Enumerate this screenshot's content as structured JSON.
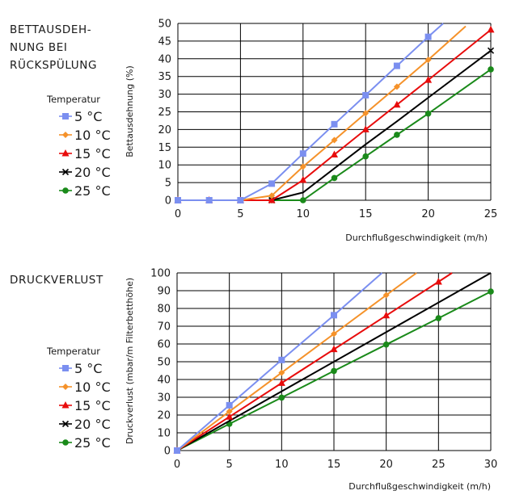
{
  "charts": [
    {
      "title": "BETTAUSDEH-\nNUNG BEI\nRÜCKSPÜLUNG",
      "legend_title": "Temperatur",
      "xlabel": "Durchflußgeschwindigkeit (m/h)",
      "ylabel": "Bettausdehnung (%)"
    },
    {
      "title": "DRUCKVERLUST",
      "legend_title": "Temperatur",
      "xlabel": "Durchflußgeschwindigkeit (m/h)",
      "ylabel": "Druckverlust  (mbar/m Filterbetthöhe)"
    }
  ],
  "colors": {
    "5 °C": "#7b8ff0",
    "10 °C": "#f5922a",
    "15 °C": "#e80c0c",
    "20 °C": "#000000",
    "25 °C": "#1a8a1a"
  },
  "chart_data": [
    {
      "type": "line",
      "title": "BETTAUSDEH-NUNG BEI RÜCKSPÜLUNG",
      "xlabel": "Durchflußgeschwindigkeit (m/h)",
      "ylabel": "Bettausdehnung (%)",
      "xlim": [
        0,
        25
      ],
      "ylim": [
        0,
        50
      ],
      "xticks": [
        0,
        5,
        10,
        15,
        20,
        25
      ],
      "yticks": [
        0,
        5,
        10,
        15,
        20,
        25,
        30,
        35,
        40,
        45,
        50
      ],
      "grid": true,
      "legend_title": "Temperatur",
      "legend_position": "left",
      "series": [
        {
          "name": "5 °C",
          "marker": "square",
          "line_x": [
            0,
            5,
            7.5,
            10,
            12.5,
            15,
            17.5,
            20,
            21.2
          ],
          "line_y": [
            0,
            0,
            4.7,
            13.2,
            21.5,
            29.7,
            38,
            46.2,
            50
          ],
          "marker_x": [
            0,
            2.5,
            5,
            7.5,
            10,
            12.5,
            15,
            17.5,
            20
          ],
          "marker_y": [
            0,
            0,
            0,
            4.7,
            13.2,
            21.5,
            29.7,
            38,
            46.2
          ]
        },
        {
          "name": "10 °C",
          "marker": "diamond",
          "line_x": [
            0,
            5,
            7.5,
            10,
            12.5,
            15,
            17.5,
            20,
            23
          ],
          "line_y": [
            0,
            0,
            1.3,
            9.5,
            17,
            24.6,
            32.1,
            39.7,
            49.2
          ],
          "marker_x": [
            0,
            2.5,
            5,
            7.5,
            10,
            12.5,
            15,
            17.5,
            20
          ],
          "marker_y": [
            0,
            0,
            0,
            1.3,
            9.5,
            17,
            24.6,
            32.1,
            39.7
          ]
        },
        {
          "name": "15 °C",
          "marker": "triangle",
          "line_x": [
            0,
            5,
            7.5,
            10,
            12.5,
            15,
            17.5,
            20,
            25
          ],
          "line_y": [
            0,
            0,
            0,
            5.7,
            12.9,
            20,
            27,
            34,
            48.2
          ],
          "marker_x": [
            0,
            2.5,
            5,
            7.5,
            10,
            12.5,
            15,
            17.5,
            20,
            25
          ],
          "marker_y": [
            0,
            0,
            0,
            0,
            5.7,
            12.9,
            20,
            27,
            34,
            48.2
          ]
        },
        {
          "name": "20 °C",
          "marker": "cross",
          "line_x": [
            0,
            5,
            7.5,
            10,
            12.5,
            15,
            17.5,
            20,
            25
          ],
          "line_y": [
            0,
            0,
            0,
            2.2,
            9,
            15.8,
            22.3,
            29,
            42.3
          ],
          "marker_x": [
            0,
            2.5,
            5,
            7.5,
            25
          ],
          "marker_y": [
            0,
            0,
            0,
            0,
            42.3
          ]
        },
        {
          "name": "25 °C",
          "marker": "circle",
          "line_x": [
            0,
            5,
            7.5,
            10,
            12.5,
            15,
            17.5,
            20,
            25
          ],
          "line_y": [
            0,
            0,
            0,
            0,
            6.3,
            12.4,
            18.5,
            24.5,
            37
          ],
          "marker_x": [
            0,
            2.5,
            5,
            7.5,
            10,
            12.5,
            15,
            17.5,
            20,
            25
          ],
          "marker_y": [
            0,
            0,
            0,
            0,
            0,
            6.3,
            12.4,
            18.5,
            24.5,
            37
          ]
        }
      ]
    },
    {
      "type": "line",
      "title": "DRUCKVERLUST",
      "xlabel": "Durchflußgeschwindigkeit (m/h)",
      "ylabel": "Druckverlust  (mbar/m Filterbetthöhe)",
      "xlim": [
        0,
        30
      ],
      "ylim": [
        0,
        100
      ],
      "xticks": [
        0,
        5,
        10,
        15,
        20,
        25,
        30
      ],
      "yticks": [
        0,
        10,
        20,
        30,
        40,
        50,
        60,
        70,
        80,
        90,
        100
      ],
      "grid": true,
      "legend_title": "Temperatur",
      "legend_position": "left",
      "series": [
        {
          "name": "5 °C",
          "marker": "square",
          "line_x": [
            0,
            5,
            10,
            15,
            19.6
          ],
          "line_y": [
            0,
            25.5,
            51,
            76.2,
            100
          ],
          "marker_x": [
            0,
            5,
            10,
            15
          ],
          "marker_y": [
            0,
            25.5,
            51,
            76.2
          ]
        },
        {
          "name": "10 °C",
          "marker": "diamond",
          "line_x": [
            0,
            5,
            10,
            15,
            20,
            22.9
          ],
          "line_y": [
            0,
            22,
            43.8,
            65.7,
            87.5,
            100
          ],
          "marker_x": [
            0,
            5,
            10,
            15,
            20
          ],
          "marker_y": [
            0,
            22,
            43.8,
            65.7,
            87.5
          ]
        },
        {
          "name": "15 °C",
          "marker": "triangle",
          "line_x": [
            0,
            5,
            10,
            15,
            20,
            25,
            26.3
          ],
          "line_y": [
            0,
            19,
            38,
            57,
            76,
            95,
            100
          ],
          "marker_x": [
            0,
            5,
            10,
            15,
            20,
            25
          ],
          "marker_y": [
            0,
            19,
            38,
            57,
            76,
            95
          ]
        },
        {
          "name": "20 °C",
          "marker": "cross",
          "line_x": [
            0,
            30
          ],
          "line_y": [
            0,
            100
          ],
          "marker_x": [
            0
          ],
          "marker_y": [
            0
          ]
        },
        {
          "name": "25 °C",
          "marker": "circle",
          "line_x": [
            0,
            5,
            10,
            15,
            20,
            25,
            30
          ],
          "line_y": [
            0,
            15,
            29.8,
            44.8,
            59.7,
            74.5,
            89.5
          ],
          "marker_x": [
            0,
            5,
            10,
            15,
            20,
            25,
            30
          ],
          "marker_y": [
            0,
            15,
            29.8,
            44.8,
            59.7,
            74.5,
            89.5
          ]
        }
      ]
    }
  ]
}
